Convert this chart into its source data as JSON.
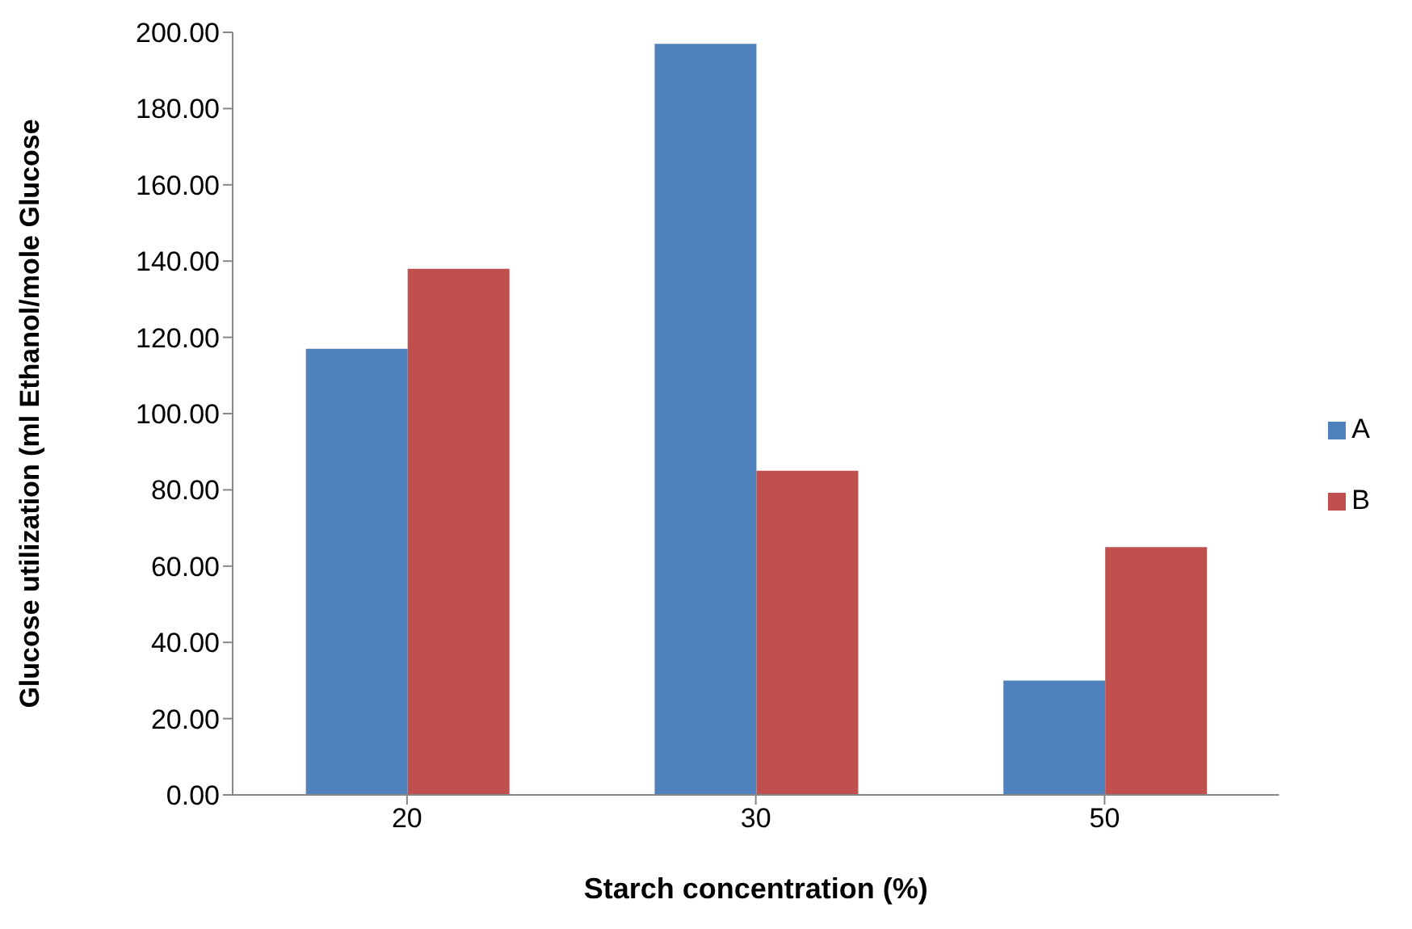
{
  "chart_data": {
    "type": "bar",
    "xlabel": "Starch concentration (%)",
    "ylabel": "Glucose utilization (ml Ethanol/mole Glucose",
    "categories": [
      "20",
      "30",
      "50"
    ],
    "series": [
      {
        "name": "A",
        "color": "#4f81bd",
        "values": [
          117,
          197,
          30
        ]
      },
      {
        "name": "B",
        "color": "#c0504d",
        "values": [
          138,
          85,
          65
        ]
      }
    ],
    "ylim": [
      0,
      200
    ],
    "yticks": [
      {
        "value": 0,
        "label": "0.00"
      },
      {
        "value": 20,
        "label": "20.00"
      },
      {
        "value": 40,
        "label": "40.00"
      },
      {
        "value": 60,
        "label": "60.00"
      },
      {
        "value": 80,
        "label": "80.00"
      },
      {
        "value": 100,
        "label": "100.00"
      },
      {
        "value": 120,
        "label": "120.00"
      },
      {
        "value": 140,
        "label": "140.00"
      },
      {
        "value": 160,
        "label": "160.00"
      },
      {
        "value": 180,
        "label": "180.00"
      },
      {
        "value": 200,
        "label": "200.00"
      }
    ],
    "grid": false,
    "legend": "right"
  }
}
